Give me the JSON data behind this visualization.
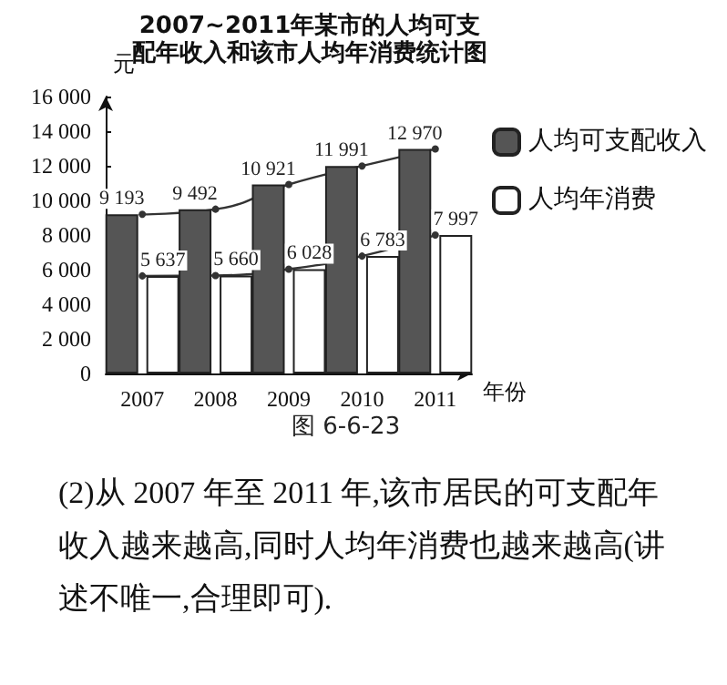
{
  "chart_data": {
    "type": "bar",
    "title": "2007~2011年某市的人均可支配年收入和该市人均年消费统计图",
    "xlabel": "年份",
    "ylabel": "元",
    "categories": [
      "2007",
      "2008",
      "2009",
      "2010",
      "2011"
    ],
    "series": [
      {
        "name": "人均可支配收入",
        "color": "#555555",
        "values": [
          9193,
          9492,
          10921,
          11991,
          12970
        ]
      },
      {
        "name": "人均年消费",
        "color": "#ffffff",
        "values": [
          5637,
          5660,
          6028,
          6783,
          7997
        ]
      },
      {
        "type": "line",
        "color": "#333333",
        "values": [
          9193,
          9492,
          10921,
          11991,
          12970
        ]
      },
      {
        "type": "line",
        "color": "#333333",
        "values": [
          5637,
          5660,
          6028,
          6783,
          7997
        ]
      }
    ],
    "ylim": [
      0,
      16000
    ],
    "yticks": [
      0,
      {
        "value": 2000,
        "label": "2 000"
      },
      {
        "value": 4000,
        "label": "4 000"
      },
      {
        "value": 6000,
        "label": "6 000"
      },
      {
        "value": 8000,
        "label": "8 000"
      },
      {
        "value": 10000,
        "label": "10 000"
      },
      {
        "value": 12000,
        "label": "12 000"
      },
      {
        "value": 14000,
        "label": "14 000"
      },
      {
        "value": 16000,
        "label": "16 000"
      }
    ],
    "value_labels": [
      "9 193",
      "9 492",
      "10 921",
      "11 991",
      "12 970",
      "5 637",
      "5 660",
      "6 028",
      "6 783",
      "7 997"
    ],
    "legend": "right",
    "marker": "circle",
    "grid": false,
    "annotations": [
      "图 6-6-23",
      "(2)从 2007 年至 2011 年,该市居民的可支配年收入越来越高,同时人均年消费也越来越高(讲述不唯一,合理即可)."
    ]
  }
}
